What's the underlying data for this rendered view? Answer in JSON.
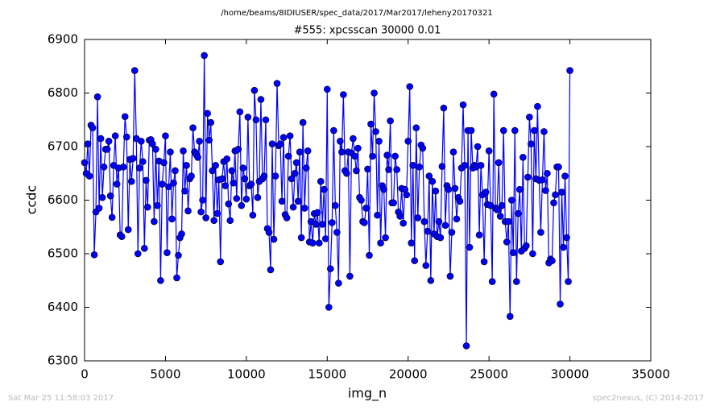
{
  "chart_data": {
    "type": "line",
    "title": "/home/beams/8IDIUSER/spec_data/2017/Mar2017/leheny20170321",
    "subtitle": "#555: xpcsscan 30000 0.01",
    "xlabel": "img_n",
    "ylabel": "ccdc",
    "footer_left": "Sat Mar 25 11:58:03 2017",
    "footer_right": "spec2nexus, (C) 2014-2017",
    "xlim": [
      0,
      35000
    ],
    "xticks": [
      0,
      5000,
      10000,
      15000,
      20000,
      25000,
      30000,
      35000
    ],
    "ylim": [
      6300,
      6900
    ],
    "yticks": [
      6300,
      6400,
      6500,
      6600,
      6700,
      6800,
      6900
    ],
    "color": "#0000ff",
    "marker": "circle",
    "x": [
      0,
      100,
      200,
      300,
      400,
      500,
      600,
      700,
      800,
      900,
      1000,
      1100,
      1200,
      1300,
      1400,
      1500,
      1600,
      1700,
      1800,
      1900,
      2000,
      2100,
      2200,
      2300,
      2400,
      2500,
      2600,
      2700,
      2800,
      2900,
      3000,
      3100,
      3200,
      3300,
      3400,
      3500,
      3600,
      3700,
      3800,
      3900,
      4000,
      4100,
      4200,
      4300,
      4400,
      4500,
      4600,
      4700,
      4800,
      4900,
      5000,
      5100,
      5200,
      5300,
      5400,
      5500,
      5600,
      5700,
      5800,
      5900,
      6000,
      6100,
      6200,
      6300,
      6400,
      6500,
      6600,
      6700,
      6800,
      6900,
      7000,
      7100,
      7200,
      7300,
      7400,
      7500,
      7600,
      7700,
      7800,
      7900,
      8000,
      8100,
      8200,
      8300,
      8400,
      8500,
      8600,
      8700,
      8800,
      8900,
      9000,
      9100,
      9200,
      9300,
      9400,
      9500,
      9600,
      9700,
      9800,
      9900,
      10000,
      10100,
      10200,
      10300,
      10400,
      10500,
      10600,
      10700,
      10800,
      10900,
      11000,
      11100,
      11200,
      11300,
      11400,
      11500,
      11600,
      11700,
      11800,
      11900,
      12000,
      12100,
      12200,
      12300,
      12400,
      12500,
      12600,
      12700,
      12800,
      12900,
      13000,
      13100,
      13200,
      13300,
      13400,
      13500,
      13600,
      13700,
      13800,
      13900,
      14000,
      14100,
      14200,
      14300,
      14400,
      14500,
      14600,
      14700,
      14800,
      14900,
      15000,
      15100,
      15200,
      15300,
      15400,
      15500,
      15600,
      15700,
      15800,
      15900,
      16000,
      16100,
      16200,
      16300,
      16400,
      16500,
      16600,
      16700,
      16800,
      16900,
      17000,
      17100,
      17200,
      17300,
      17400,
      17500,
      17600,
      17700,
      17800,
      17900,
      18000,
      18100,
      18200,
      18300,
      18400,
      18500,
      18600,
      18700,
      18800,
      18900,
      19000,
      19100,
      19200,
      19300,
      19400,
      19500,
      19600,
      19700,
      19800,
      19900,
      20000,
      20100,
      20200,
      20300,
      20400,
      20500,
      20600,
      20700,
      20800,
      20900,
      21000,
      21100,
      21200,
      21300,
      21400,
      21500,
      21600,
      21700,
      21800,
      21900,
      22000,
      22100,
      22200,
      22300,
      22400,
      22500,
      22600,
      22700,
      22800,
      22900,
      23000,
      23100,
      23200,
      23300,
      23400,
      23500,
      23600,
      23700,
      23800,
      23900,
      24000,
      24100,
      24200,
      24300,
      24400,
      24500,
      24600,
      24700,
      24800,
      24900,
      25000,
      25100,
      25200,
      25300,
      25400,
      25500,
      25600,
      25700,
      25800,
      25900,
      26000,
      26100,
      26200,
      26300,
      26400,
      26500,
      26600,
      26700,
      26800,
      26900,
      27000,
      27100,
      27200,
      27300,
      27400,
      27500,
      27600,
      27700,
      27800,
      27900,
      28000,
      28100,
      28200,
      28300,
      28400,
      28500,
      28600,
      28700,
      28800,
      28900,
      29000,
      29100,
      29200,
      29300,
      29400,
      29500,
      29600,
      29700,
      29800,
      29900,
      30000
    ],
    "values": [
      6670,
      6650,
      6705,
      6645,
      6740,
      6735,
      6498,
      6578,
      6793,
      6585,
      6715,
      6605,
      6662,
      6695,
      6695,
      6710,
      6608,
      6568,
      6665,
      6720,
      6630,
      6660,
      6535,
      6532,
      6662,
      6756,
      6718,
      6545,
      6676,
      6635,
      6678,
      6842,
      6715,
      6500,
      6660,
      6710,
      6672,
      6510,
      6637,
      6587,
      6712,
      6713,
      6705,
      6560,
      6695,
      6590,
      6673,
      6450,
      6630,
      6670,
      6720,
      6502,
      6625,
      6690,
      6565,
      6632,
      6655,
      6455,
      6497,
      6530,
      6537,
      6692,
      6617,
      6665,
      6580,
      6640,
      6645,
      6735,
      6690,
      6685,
      6680,
      6710,
      6578,
      6600,
      6870,
      6567,
      6762,
      6712,
      6745,
      6655,
      6562,
      6665,
      6575,
      6638,
      6485,
      6640,
      6672,
      6627,
      6677,
      6593,
      6562,
      6655,
      6632,
      6692,
      6603,
      6695,
      6765,
      6590,
      6660,
      6640,
      6602,
      6755,
      6627,
      6630,
      6572,
      6805,
      6750,
      6605,
      6635,
      6788,
      6640,
      6645,
      6750,
      6547,
      6540,
      6470,
      6705,
      6527,
      6645,
      6818,
      6702,
      6705,
      6598,
      6717,
      6573,
      6567,
      6682,
      6720,
      6640,
      6587,
      6650,
      6670,
      6598,
      6690,
      6530,
      6745,
      6585,
      6660,
      6692,
      6522,
      6560,
      6520,
      6575,
      6555,
      6577,
      6520,
      6635,
      6555,
      6620,
      6528,
      6807,
      6400,
      6472,
      6558,
      6730,
      6590,
      6540,
      6445,
      6710,
      6690,
      6797,
      6655,
      6650,
      6690,
      6458,
      6688,
      6715,
      6682,
      6655,
      6697,
      6605,
      6600,
      6560,
      6558,
      6585,
      6658,
      6497,
      6742,
      6682,
      6800,
      6728,
      6572,
      6710,
      6520,
      6627,
      6620,
      6530,
      6684,
      6657,
      6748,
      6595,
      6595,
      6682,
      6657,
      6578,
      6570,
      6622,
      6557,
      6620,
      6610,
      6710,
      6812,
      6520,
      6665,
      6487,
      6735,
      6567,
      6662,
      6703,
      6697,
      6560,
      6478,
      6542,
      6645,
      6450,
      6635,
      6537,
      6617,
      6532,
      6560,
      6530,
      6663,
      6772,
      6553,
      6627,
      6620,
      6458,
      6540,
      6690,
      6622,
      6565,
      6605,
      6598,
      6660,
      6778,
      6665,
      6328,
      6730,
      6512,
      6730,
      6660,
      6665,
      6662,
      6700,
      6535,
      6665,
      6610,
      6485,
      6615,
      6592,
      6692,
      6590,
      6448,
      6798,
      6585,
      6582,
      6670,
      6570,
      6590,
      6730,
      6560,
      6522,
      6560,
      6383,
      6600,
      6502,
      6730,
      6448,
      6575,
      6620,
      6505,
      6680,
      6510,
      6515,
      6643,
      6755,
      6705,
      6500,
      6730,
      6640,
      6775,
      6637,
      6540,
      6638,
      6728,
      6618,
      6650,
      6483,
      6490,
      6487,
      6595,
      6610,
      6662,
      6662,
      6406,
      6615,
      6512,
      6645,
      6530,
      6448,
      6842
    ]
  }
}
